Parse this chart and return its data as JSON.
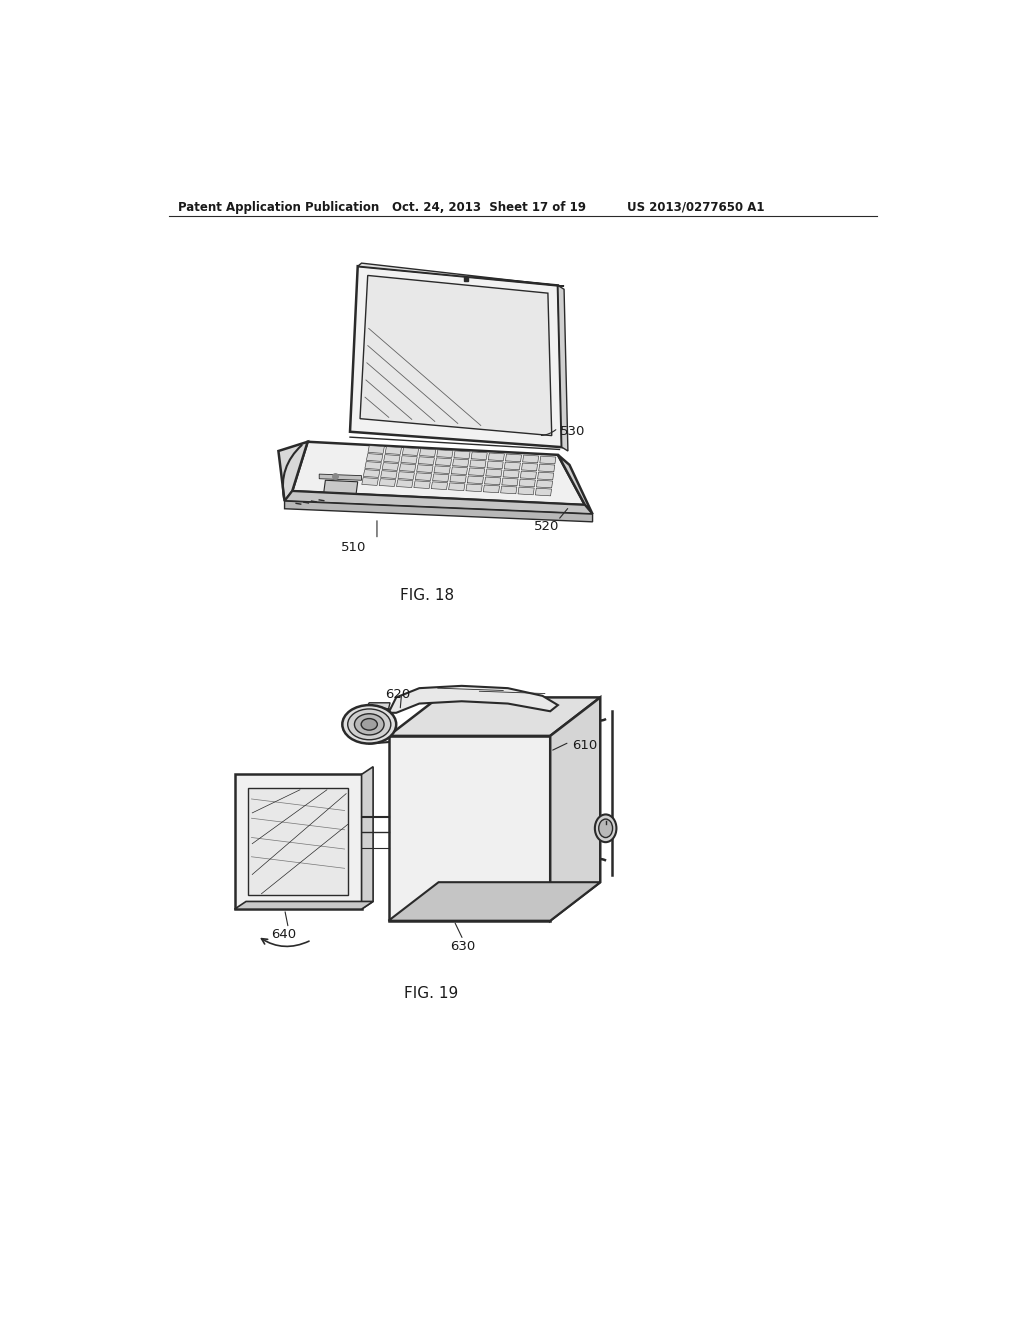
{
  "header_left": "Patent Application Publication",
  "header_mid": "Oct. 24, 2013  Sheet 17 of 19",
  "header_right": "US 2013/0277650 A1",
  "fig18_label": "FIG. 18",
  "fig19_label": "FIG. 19",
  "label_510": "510",
  "label_520": "520",
  "label_530": "530",
  "label_610": "610",
  "label_620": "620",
  "label_630": "630",
  "label_640": "640",
  "bg_color": "#ffffff",
  "line_color": "#2a2a2a",
  "text_color": "#1a1a1a",
  "header_fontsize": 8.5,
  "label_fontsize": 9.5,
  "fig_label_fontsize": 11
}
